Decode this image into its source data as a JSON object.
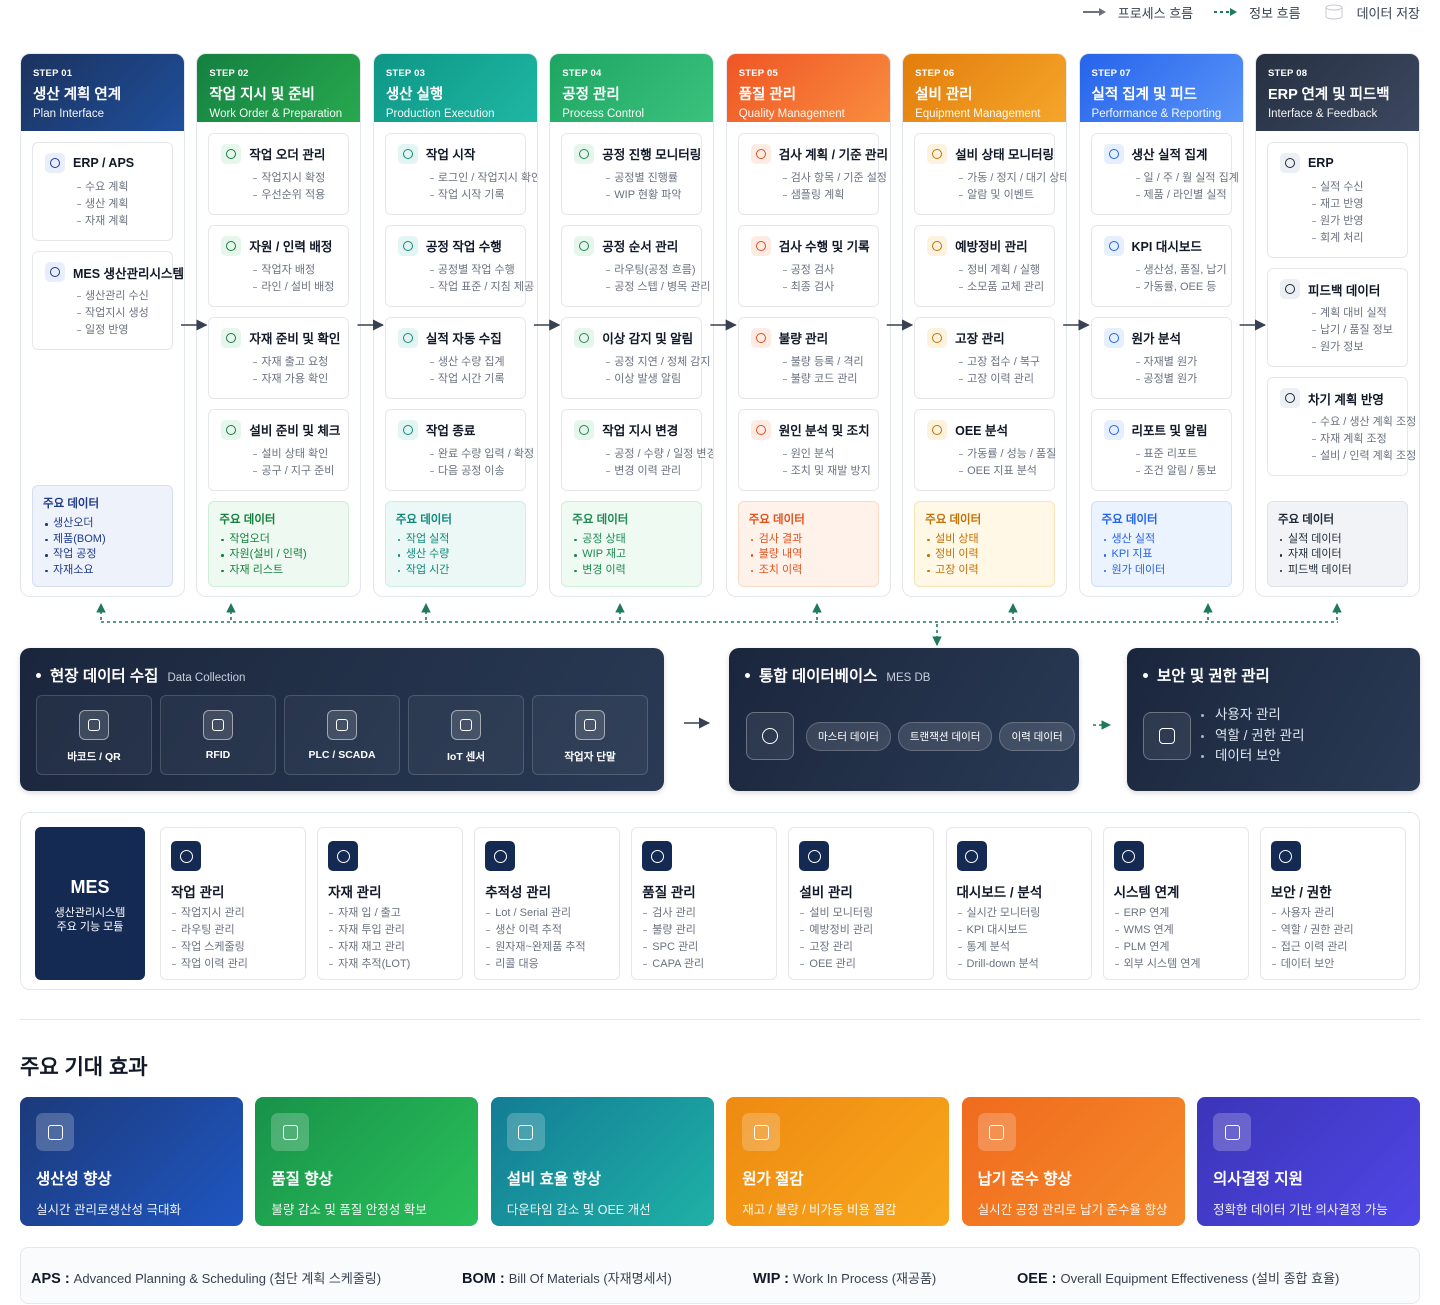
{
  "legend": [
    "프로세스 흐름",
    "정보 흐름",
    "데이터 저장"
  ],
  "steps": [
    {
      "step": "STEP 01",
      "title": "생산 계획 연계",
      "subtitle": "Plan Interface",
      "cards": [
        {
          "title": "ERP / APS",
          "items": [
            "수요 계획",
            "생산 계획",
            "자재 계획"
          ]
        },
        {
          "title": "MES 생산관리시스템",
          "items": [
            "생산관리 수신",
            "작업지시 생성",
            "일정 반영"
          ]
        }
      ],
      "data": {
        "title": "주요 데이터",
        "items": [
          "생산오더",
          "제품(BOM)",
          "작업 공정",
          "자재소요"
        ]
      }
    },
    {
      "step": "STEP 02",
      "title": "작업 지시 및 준비",
      "subtitle": "Work Order & Preparation",
      "cards": [
        {
          "title": "작업 오더 관리",
          "items": [
            "작업지시 확정",
            "우선순위 적용"
          ]
        },
        {
          "title": "자원 / 인력 배정",
          "items": [
            "작업자 배정",
            "라인 / 설비 배정"
          ]
        },
        {
          "title": "자재 준비 및 확인",
          "items": [
            "자재 출고 요청",
            "자재 가용 확인"
          ]
        },
        {
          "title": "설비 준비 및 체크",
          "items": [
            "설비 상태 확인",
            "공구 / 지구 준비"
          ]
        }
      ],
      "data": {
        "title": "주요 데이터",
        "items": [
          "작업오더",
          "자원(설비 / 인력)",
          "자재 리스트"
        ]
      }
    },
    {
      "step": "STEP 03",
      "title": "생산 실행",
      "subtitle": "Production Execution",
      "cards": [
        {
          "title": "작업 시작",
          "items": [
            "로그인 / 작업지시 확인",
            "작업 시작 기록"
          ]
        },
        {
          "title": "공정 작업 수행",
          "items": [
            "공정별 작업 수행",
            "작업 표준 / 지침 제공"
          ]
        },
        {
          "title": "실적 자동 수집",
          "items": [
            "생산 수량 집계",
            "작업 시간 기록"
          ]
        },
        {
          "title": "작업 종료",
          "items": [
            "완료 수량 입력 / 확정",
            "다음 공정 이송"
          ]
        }
      ],
      "data": {
        "title": "주요 데이터",
        "items": [
          "작업 실적",
          "생산 수량",
          "작업 시간"
        ]
      }
    },
    {
      "step": "STEP 04",
      "title": "공정 관리",
      "subtitle": "Process Control",
      "cards": [
        {
          "title": "공정 진행 모니터링",
          "items": [
            "공정별 진행률",
            "WIP 현황 파악"
          ]
        },
        {
          "title": "공정 순서 관리",
          "items": [
            "라우팅(공정 흐름)",
            "공정 스텝 / 병목 관리"
          ]
        },
        {
          "title": "이상 감지 및 알림",
          "items": [
            "공정 지연 / 정체 감지",
            "이상 발생 알림"
          ]
        },
        {
          "title": "작업 지시 변경",
          "items": [
            "공정 / 수량 / 일정 변경",
            "변경 이력 관리"
          ]
        }
      ],
      "data": {
        "title": "주요 데이터",
        "items": [
          "공정 상태",
          "WIP 재고",
          "변경 이력"
        ]
      }
    },
    {
      "step": "STEP 05",
      "title": "품질 관리",
      "subtitle": "Quality Management",
      "cards": [
        {
          "title": "검사 계획 / 기준 관리",
          "items": [
            "검사 항목 / 기준 설정",
            "샘플링 계획"
          ]
        },
        {
          "title": "검사 수행 및 기록",
          "items": [
            "공정 검사",
            "최종 검사"
          ]
        },
        {
          "title": "불량 관리",
          "items": [
            "불량 등록 / 격리",
            "불량 코드 관리"
          ]
        },
        {
          "title": "원인 분석 및 조치",
          "items": [
            "원인 분석",
            "조치 및 재발 방지"
          ]
        }
      ],
      "data": {
        "title": "주요 데이터",
        "items": [
          "검사 결과",
          "불량 내역",
          "조치 이력"
        ]
      }
    },
    {
      "step": "STEP 06",
      "title": "설비 관리",
      "subtitle": "Equipment Management",
      "cards": [
        {
          "title": "설비 상태 모니터링",
          "items": [
            "가동 / 정지 / 대기 상태",
            "알람 및 이벤트"
          ]
        },
        {
          "title": "예방정비 관리",
          "items": [
            "정비 계획 / 실행",
            "소모품 교체 관리"
          ]
        },
        {
          "title": "고장 관리",
          "items": [
            "고장 접수 / 복구",
            "고장 이력 관리"
          ]
        },
        {
          "title": "OEE 분석",
          "items": [
            "가동률 / 성능 / 품질",
            "OEE 지표 분석"
          ]
        }
      ],
      "data": {
        "title": "주요 데이터",
        "items": [
          "설비 상태",
          "정비 이력",
          "고장 이력"
        ]
      }
    },
    {
      "step": "STEP 07",
      "title": "실적 집계 및 피드",
      "subtitle": "Performance & Reporting",
      "cards": [
        {
          "title": "생산 실적 집계",
          "items": [
            "일 / 주 / 월 실적 집계",
            "제품 / 라인별 실적"
          ]
        },
        {
          "title": "KPI 대시보드",
          "items": [
            "생산성, 품질, 납기",
            "가동률, OEE 등"
          ]
        },
        {
          "title": "원가 분석",
          "items": [
            "자재별 원가",
            "공정별 원가"
          ]
        },
        {
          "title": "리포트 및 알림",
          "items": [
            "표준 리포트",
            "조건 알림 / 통보"
          ]
        }
      ],
      "data": {
        "title": "주요 데이터",
        "items": [
          "생산 실적",
          "KPI 지표",
          "원가 데이터"
        ]
      }
    },
    {
      "step": "STEP 08",
      "title": "ERP 연계 및 피드백",
      "subtitle": "Interface & Feedback",
      "cards": [
        {
          "title": "ERP",
          "items": [
            "실적 수신",
            "재고 반영",
            "원가 반영",
            "회계 처리"
          ]
        },
        {
          "title": "피드백 데이터",
          "items": [
            "계획 대비 실적",
            "납기 / 품질 정보",
            "원가 정보"
          ]
        },
        {
          "title": "차기 계획 반영",
          "items": [
            "수요 / 생산 계획 조정",
            "자재 계획 조정",
            "설비 / 인력 계획 조정"
          ]
        }
      ],
      "data": {
        "title": "주요 데이터",
        "items": [
          "실적 데이터",
          "자재 데이터",
          "피드백 데이터"
        ]
      }
    }
  ],
  "collection": {
    "title": "현장 데이터 수집",
    "subtitle": "Data Collection",
    "items": [
      "바코드 / QR",
      "RFID",
      "PLC / SCADA",
      "IoT 센서",
      "작업자 단말"
    ]
  },
  "database": {
    "title": "통합 데이터베이스",
    "subtitle": "MES DB",
    "items": [
      "마스터 데이터",
      "트랜잭션 데이터",
      "이력 데이터"
    ]
  },
  "security": {
    "title": "보안 및 권한 관리",
    "items": [
      "사용자 관리",
      "역할 / 권한 관리",
      "데이터 보안"
    ]
  },
  "mes": {
    "title": "MES",
    "subtitle": [
      "생산관리시스템",
      "주요 기능 모듈"
    ]
  },
  "modules": [
    {
      "title": "작업 관리",
      "items": [
        "작업지시 관리",
        "라우팅 관리",
        "작업 스케줄링",
        "작업 이력 관리"
      ]
    },
    {
      "title": "자재 관리",
      "items": [
        "자재 입 / 출고",
        "자재 투입 관리",
        "자재 재고 관리",
        "자재 추적(LOT)"
      ]
    },
    {
      "title": "추적성 관리",
      "items": [
        "Lot / Serial 관리",
        "생산 이력 추적",
        "원자재~완제품 추적",
        "리콜 대응"
      ]
    },
    {
      "title": "품질 관리",
      "items": [
        "검사 관리",
        "불량 관리",
        "SPC 관리",
        "CAPA 관리"
      ]
    },
    {
      "title": "설비 관리",
      "items": [
        "설비 모니터링",
        "예방정비 관리",
        "고장 관리",
        "OEE 관리"
      ]
    },
    {
      "title": "대시보드 / 분석",
      "items": [
        "실시간 모니터링",
        "KPI 대시보드",
        "통계 분석",
        "Drill-down 분석"
      ]
    },
    {
      "title": "시스템 연계",
      "items": [
        "ERP 연계",
        "WMS 연계",
        "PLM 연계",
        "외부 시스템 연계"
      ]
    },
    {
      "title": "보안 / 권한",
      "items": [
        "사용자 관리",
        "역할 / 권한 관리",
        "접근 이력 관리",
        "데이터 보안"
      ]
    }
  ],
  "effects": {
    "title": "주요 기대 효과",
    "items": [
      {
        "title": "생산성 향상",
        "desc": "실시간 관리로생산성 극대화"
      },
      {
        "title": "품질 향상",
        "desc": "불량 감소 및 품질 안정성 확보"
      },
      {
        "title": "설비 효율 향상",
        "desc": "다운타임 감소 및 OEE 개선"
      },
      {
        "title": "원가 절감",
        "desc": "재고 / 불량 / 비가동 비용 절감"
      },
      {
        "title": "납기 준수 향상",
        "desc": "실시간 공정 관리로 납기 준수율 향상"
      },
      {
        "title": "의사결정 지원",
        "desc": "정확한 데이터 기반 의사결정 가능"
      }
    ]
  },
  "glossary": [
    {
      "term": "APS :",
      "desc": "Advanced Planning & Scheduling (첨단 계획 스케줄링)"
    },
    {
      "term": "BOM :",
      "desc": "Bill Of Materials (자재명세서)"
    },
    {
      "term": "WIP :",
      "desc": "Work In Process (재공품)"
    },
    {
      "term": "OEE :",
      "desc": "Overall Equipment Effectiveness (설비 종합 효율)"
    }
  ]
}
